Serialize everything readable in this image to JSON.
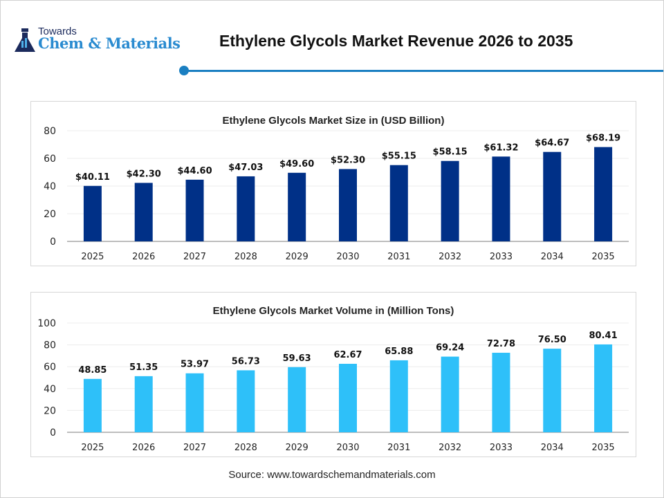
{
  "header": {
    "logo_top": "Towards",
    "logo_main": "Chem & Materials",
    "title": "Ethylene Glycols Market Revenue 2026 to 2035"
  },
  "chart_data": [
    {
      "type": "bar",
      "title": "Ethylene Glycols Market Size in (USD Billion)",
      "categories": [
        "2025",
        "2026",
        "2027",
        "2028",
        "2029",
        "2030",
        "2031",
        "2032",
        "2033",
        "2034",
        "2035"
      ],
      "values": [
        40.11,
        42.3,
        44.6,
        47.03,
        49.6,
        52.3,
        55.15,
        58.15,
        61.32,
        64.67,
        68.19
      ],
      "labels": [
        "$40.11",
        "$42.30",
        "$44.60",
        "$47.03",
        "$49.60",
        "$52.30",
        "$55.15",
        "$58.15",
        "$61.32",
        "$64.67",
        "$68.19"
      ],
      "ylim": [
        0,
        80
      ],
      "yticks": [
        "0",
        "20",
        "40",
        "60",
        "80"
      ],
      "color": "#003087",
      "grid": true,
      "xlabel": "",
      "ylabel": ""
    },
    {
      "type": "bar",
      "title": "Ethylene Glycols Market Volume in (Million Tons)",
      "categories": [
        "2025",
        "2026",
        "2027",
        "2028",
        "2029",
        "2030",
        "2031",
        "2032",
        "2033",
        "2034",
        "2035"
      ],
      "values": [
        48.85,
        51.35,
        53.97,
        56.73,
        59.63,
        62.67,
        65.88,
        69.24,
        72.78,
        76.5,
        80.41
      ],
      "labels": [
        "48.85",
        "51.35",
        "53.97",
        "56.73",
        "59.63",
        "62.67",
        "65.88",
        "69.24",
        "72.78",
        "76.50",
        "80.41"
      ],
      "ylim": [
        0,
        100
      ],
      "yticks": [
        "0",
        "20",
        "40",
        "60",
        "80",
        "100"
      ],
      "color": "#2EC0F9",
      "grid": true,
      "xlabel": "",
      "ylabel": ""
    }
  ],
  "source": "Source: www.towardschemandmaterials.com"
}
